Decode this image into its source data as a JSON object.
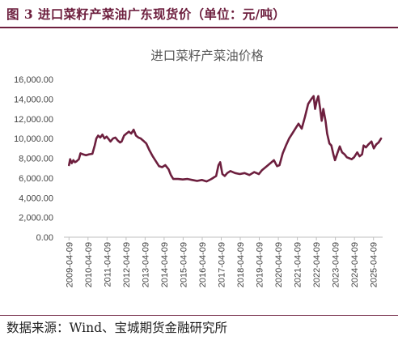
{
  "header": {
    "figure_label": "图",
    "figure_number": "3",
    "title": "进口菜籽产菜油广东现货价（单位：元/吨）"
  },
  "footer": {
    "source": "数据来源：Wind、宝城期货金融研究所"
  },
  "colors": {
    "accent": "#6d1f3e",
    "line": "#6d1f3e",
    "axis": "#bfbfbf",
    "title": "#595959"
  },
  "chart_data": {
    "type": "line",
    "title": "进口菜籽产菜油价格",
    "xlabel": "",
    "ylabel": "",
    "ylim": [
      0,
      16000
    ],
    "xlim": [
      "2009-01-01",
      "2025-10-01"
    ],
    "grid": false,
    "legend": "none",
    "yticks": [
      "0.00",
      "2,000.00",
      "4,000.00",
      "6,000.00",
      "8,000.00",
      "10,000.00",
      "12,000.00",
      "14,000.00",
      "16,000.00"
    ],
    "xticks": [
      "2009-04-09",
      "2010-04-09",
      "2011-04-09",
      "2012-04-09",
      "2013-04-09",
      "2014-04-09",
      "2015-04-09",
      "2016-04-09",
      "2017-04-09",
      "2018-04-09",
      "2019-04-09",
      "2020-04-09",
      "2021-04-09",
      "2022-04-09",
      "2023-04-09",
      "2024-04-09",
      "2025-04-09"
    ],
    "series": [
      {
        "name": "",
        "points": [
          [
            "2009-04-09",
            7300
          ],
          [
            "2009-05-01",
            7900
          ],
          [
            "2009-06-01",
            7500
          ],
          [
            "2009-07-01",
            7800
          ],
          [
            "2009-08-01",
            7600
          ],
          [
            "2009-09-01",
            7700
          ],
          [
            "2009-10-15",
            7900
          ],
          [
            "2009-11-15",
            8500
          ],
          [
            "2010-01-01",
            8400
          ],
          [
            "2010-03-01",
            8300
          ],
          [
            "2010-05-01",
            8400
          ],
          [
            "2010-07-01",
            8450
          ],
          [
            "2010-08-15",
            9300
          ],
          [
            "2010-09-15",
            10000
          ],
          [
            "2010-10-20",
            10300
          ],
          [
            "2010-12-01",
            10100
          ],
          [
            "2011-01-10",
            10400
          ],
          [
            "2011-02-20",
            10000
          ],
          [
            "2011-04-01",
            10200
          ],
          [
            "2011-05-15",
            9900
          ],
          [
            "2011-06-15",
            9700
          ],
          [
            "2011-08-01",
            10000
          ],
          [
            "2011-09-15",
            10100
          ],
          [
            "2011-11-01",
            9800
          ],
          [
            "2011-12-15",
            9600
          ],
          [
            "2012-01-15",
            9700
          ],
          [
            "2012-03-01",
            10300
          ],
          [
            "2012-04-15",
            10500
          ],
          [
            "2012-06-01",
            10700
          ],
          [
            "2012-07-15",
            10500
          ],
          [
            "2012-09-01",
            10900
          ],
          [
            "2012-10-15",
            10300
          ],
          [
            "2012-12-01",
            10100
          ],
          [
            "2013-01-15",
            10000
          ],
          [
            "2013-03-01",
            9800
          ],
          [
            "2013-05-01",
            9500
          ],
          [
            "2013-07-01",
            8800
          ],
          [
            "2013-09-01",
            8200
          ],
          [
            "2013-11-01",
            7700
          ],
          [
            "2014-01-01",
            7200
          ],
          [
            "2014-03-01",
            7100
          ],
          [
            "2014-05-01",
            7300
          ],
          [
            "2014-07-01",
            6900
          ],
          [
            "2014-08-15",
            6300
          ],
          [
            "2014-10-01",
            5900
          ],
          [
            "2015-01-01",
            5900
          ],
          [
            "2015-04-01",
            5850
          ],
          [
            "2015-07-01",
            5900
          ],
          [
            "2015-10-01",
            5800
          ],
          [
            "2016-01-01",
            5700
          ],
          [
            "2016-04-01",
            5800
          ],
          [
            "2016-07-01",
            5650
          ],
          [
            "2016-10-01",
            5900
          ],
          [
            "2017-01-01",
            6200
          ],
          [
            "2017-02-15",
            7300
          ],
          [
            "2017-03-20",
            7600
          ],
          [
            "2017-05-01",
            6400
          ],
          [
            "2017-06-15",
            6200
          ],
          [
            "2017-08-01",
            6500
          ],
          [
            "2017-10-01",
            6700
          ],
          [
            "2018-01-01",
            6500
          ],
          [
            "2018-04-01",
            6400
          ],
          [
            "2018-07-01",
            6500
          ],
          [
            "2018-10-01",
            6300
          ],
          [
            "2019-01-01",
            6600
          ],
          [
            "2019-04-01",
            6400
          ],
          [
            "2019-06-01",
            6800
          ],
          [
            "2019-09-01",
            7200
          ],
          [
            "2019-12-01",
            7600
          ],
          [
            "2020-01-15",
            7800
          ],
          [
            "2020-03-15",
            7200
          ],
          [
            "2020-05-01",
            7300
          ],
          [
            "2020-07-01",
            8500
          ],
          [
            "2020-09-01",
            9300
          ],
          [
            "2020-11-01",
            10000
          ],
          [
            "2021-01-01",
            10500
          ],
          [
            "2021-03-01",
            11000
          ],
          [
            "2021-05-01",
            11500
          ],
          [
            "2021-07-01",
            11000
          ],
          [
            "2021-09-01",
            12200
          ],
          [
            "2021-11-01",
            13500
          ],
          [
            "2022-01-01",
            14000
          ],
          [
            "2022-02-15",
            14300
          ],
          [
            "2022-03-15",
            13000
          ],
          [
            "2022-04-15",
            13800
          ],
          [
            "2022-05-15",
            14300
          ],
          [
            "2022-06-20",
            13000
          ],
          [
            "2022-07-20",
            11800
          ],
          [
            "2022-08-20",
            13000
          ],
          [
            "2022-10-01",
            11800
          ],
          [
            "2022-11-01",
            10500
          ],
          [
            "2022-12-15",
            9500
          ],
          [
            "2023-01-20",
            9300
          ],
          [
            "2023-03-01",
            8400
          ],
          [
            "2023-04-01",
            7800
          ],
          [
            "2023-05-15",
            8500
          ],
          [
            "2023-07-01",
            9200
          ],
          [
            "2023-08-15",
            8600
          ],
          [
            "2023-10-01",
            8400
          ],
          [
            "2023-11-15",
            8100
          ],
          [
            "2024-01-01",
            8000
          ],
          [
            "2024-02-15",
            7900
          ],
          [
            "2024-04-01",
            8100
          ],
          [
            "2024-06-01",
            8600
          ],
          [
            "2024-07-15",
            8200
          ],
          [
            "2024-09-01",
            8400
          ],
          [
            "2024-10-01",
            9300
          ],
          [
            "2024-11-15",
            9100
          ],
          [
            "2025-01-01",
            9400
          ],
          [
            "2025-03-01",
            9700
          ],
          [
            "2025-04-15",
            9000
          ],
          [
            "2025-06-01",
            9400
          ],
          [
            "2025-07-15",
            9600
          ],
          [
            "2025-09-01",
            10000
          ]
        ]
      }
    ]
  }
}
